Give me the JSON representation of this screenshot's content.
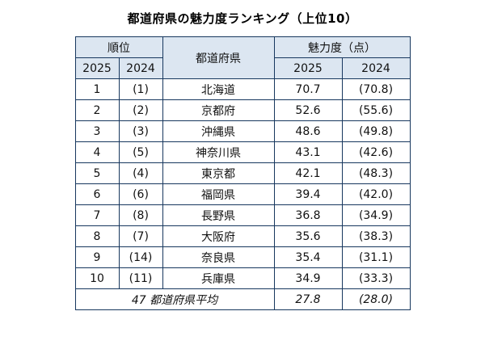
{
  "page_title": "都道府県の魅力度ランキング（上位10）",
  "table": {
    "headers": {
      "rank": "順位",
      "prefecture": "都道府県",
      "score": "魅力度（点）",
      "y2025": "2025",
      "y2024": "2024"
    },
    "rows": [
      {
        "rank2025": "1",
        "rank2024": "(1)",
        "name": "北海道",
        "score2025": "70.7",
        "score2024": "(70.8)"
      },
      {
        "rank2025": "2",
        "rank2024": "(2)",
        "name": "京都府",
        "score2025": "52.6",
        "score2024": "(55.6)"
      },
      {
        "rank2025": "3",
        "rank2024": "(3)",
        "name": "沖縄県",
        "score2025": "48.6",
        "score2024": "(49.8)"
      },
      {
        "rank2025": "4",
        "rank2024": "(5)",
        "name": "神奈川県",
        "score2025": "43.1",
        "score2024": "(42.6)"
      },
      {
        "rank2025": "5",
        "rank2024": "(4)",
        "name": "東京都",
        "score2025": "42.1",
        "score2024": "(48.3)"
      },
      {
        "rank2025": "6",
        "rank2024": "(6)",
        "name": "福岡県",
        "score2025": "39.4",
        "score2024": "(42.0)"
      },
      {
        "rank2025": "7",
        "rank2024": "(8)",
        "name": "長野県",
        "score2025": "36.8",
        "score2024": "(34.9)"
      },
      {
        "rank2025": "8",
        "rank2024": "(7)",
        "name": "大阪府",
        "score2025": "35.6",
        "score2024": "(38.3)"
      },
      {
        "rank2025": "9",
        "rank2024": "(14)",
        "name": "奈良県",
        "score2025": "35.4",
        "score2024": "(31.1)"
      },
      {
        "rank2025": "10",
        "rank2024": "(11)",
        "name": "兵庫県",
        "score2025": "34.9",
        "score2024": "(33.3)"
      }
    ],
    "footer": {
      "label": "47 都道府県平均",
      "score2025": "27.8",
      "score2024": "(28.0)"
    }
  },
  "colors": {
    "border": "#17375e",
    "header_bg": "#dce6f1",
    "text": "#111111"
  },
  "chart_data": {
    "type": "table",
    "title": "都道府県の魅力度ランキング（上位10）",
    "columns": [
      "順位 2025",
      "順位 2024",
      "都道府県",
      "魅力度(点) 2025",
      "魅力度(点) 2024"
    ],
    "rows": [
      [
        1,
        1,
        "北海道",
        70.7,
        70.8
      ],
      [
        2,
        2,
        "京都府",
        52.6,
        55.6
      ],
      [
        3,
        3,
        "沖縄県",
        48.6,
        49.8
      ],
      [
        4,
        5,
        "神奈川県",
        43.1,
        42.6
      ],
      [
        5,
        4,
        "東京都",
        42.1,
        48.3
      ],
      [
        6,
        6,
        "福岡県",
        39.4,
        42.0
      ],
      [
        7,
        8,
        "長野県",
        36.8,
        34.9
      ],
      [
        8,
        7,
        "大阪府",
        35.6,
        38.3
      ],
      [
        9,
        14,
        "奈良県",
        35.4,
        31.1
      ],
      [
        10,
        11,
        "兵庫県",
        34.9,
        33.3
      ]
    ],
    "footer": [
      "47都道府県平均",
      27.8,
      28.0
    ]
  }
}
